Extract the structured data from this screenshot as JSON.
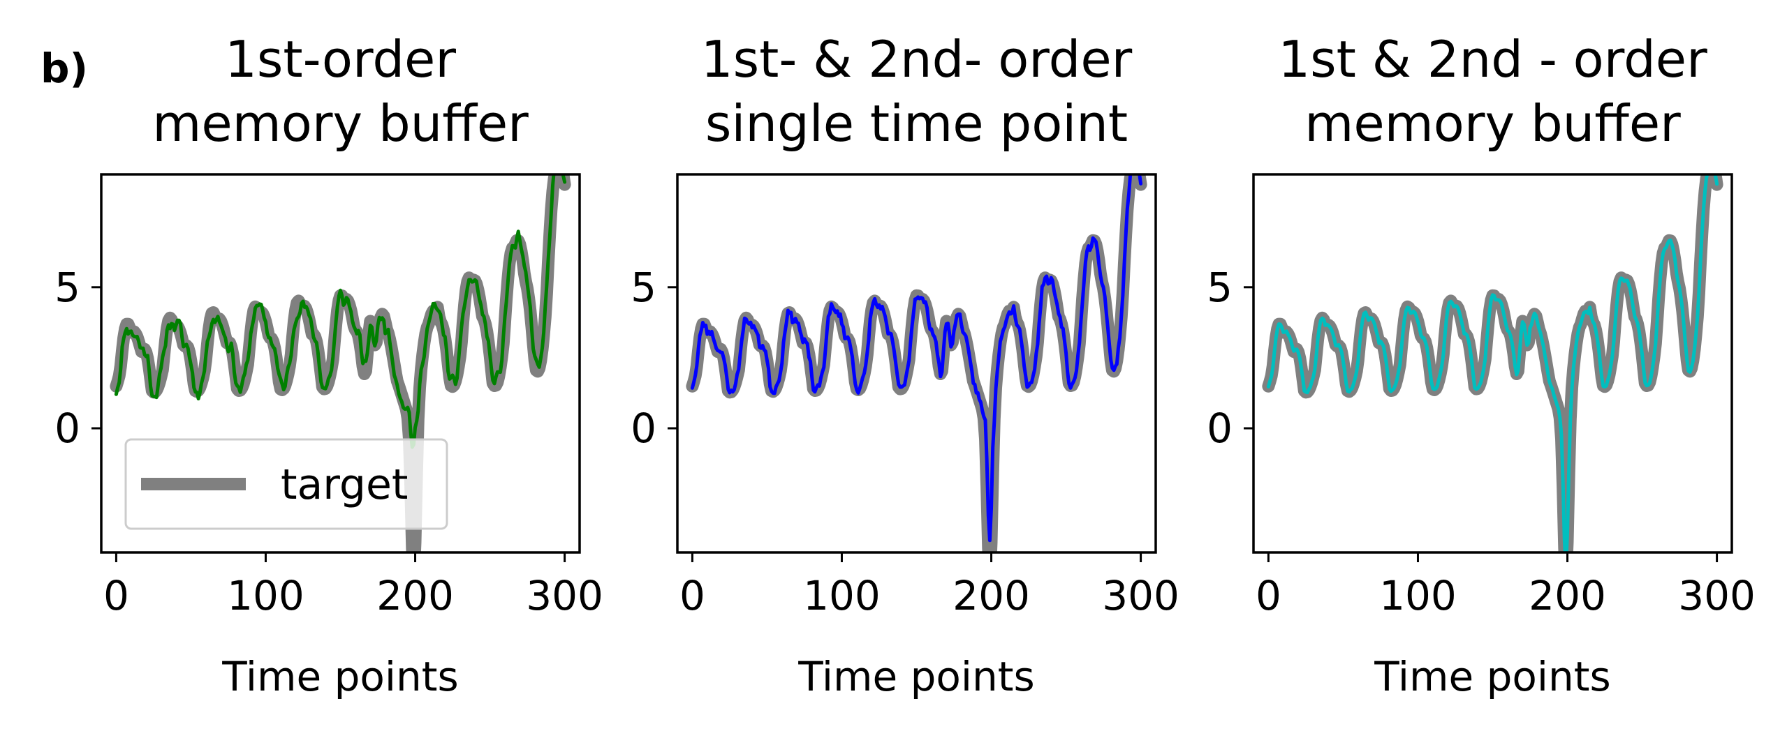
{
  "figure": {
    "panel_tag": "b)"
  },
  "legend": {
    "label": "target"
  },
  "colors": {
    "target": "#808080",
    "green": "#008000",
    "blue": "#0000ff",
    "cyan": "#00bfbf",
    "axes": "#000000"
  },
  "chart_data": [
    {
      "type": "line",
      "title_lines": [
        "1st-order",
        "memory buffer"
      ],
      "xlabel": "Time points",
      "ylabel": "",
      "xlim": [
        -10,
        310
      ],
      "ylim": [
        -4.4,
        9.0
      ],
      "xticks": [
        0,
        100,
        200,
        300
      ],
      "yticks": [
        0,
        5
      ],
      "grid": false,
      "legend_position": "lower-left",
      "series": [
        {
          "name": "target",
          "color": "#808080",
          "role": "target"
        },
        {
          "color": "#008000",
          "role": "prediction",
          "noise": 0.55,
          "spike_scale": 0.45,
          "dip_offset": 1.2,
          "smooth": 1,
          "seed": 11
        }
      ]
    },
    {
      "type": "line",
      "title_lines": [
        "1st- & 2nd- order",
        "single time point"
      ],
      "xlabel": "Time points",
      "ylabel": "",
      "xlim": [
        -10,
        310
      ],
      "ylim": [
        -4.4,
        9.0
      ],
      "xticks": [
        0,
        100,
        200,
        300
      ],
      "yticks": [
        0,
        5
      ],
      "grid": false,
      "series": [
        {
          "name": "target",
          "color": "#808080",
          "role": "target"
        },
        {
          "color": "#0000ff",
          "role": "prediction",
          "noise": 0.12,
          "spike_scale": 0.85,
          "dip_offset": 0.6,
          "smooth": 0,
          "seed": 23
        }
      ]
    },
    {
      "type": "line",
      "title_lines": [
        "1st & 2nd - order",
        "memory buffer"
      ],
      "xlabel": "Time points",
      "ylabel": "",
      "xlim": [
        -10,
        310
      ],
      "ylim": [
        -4.4,
        9.0
      ],
      "xticks": [
        0,
        100,
        200,
        300
      ],
      "yticks": [
        0,
        5
      ],
      "grid": false,
      "series": [
        {
          "name": "target",
          "color": "#808080",
          "role": "target"
        },
        {
          "color": "#00bfbf",
          "role": "prediction",
          "noise": 0.03,
          "spike_scale": 0.95,
          "dip_offset": 0.1,
          "smooth": 0,
          "seed": 37
        }
      ]
    }
  ]
}
